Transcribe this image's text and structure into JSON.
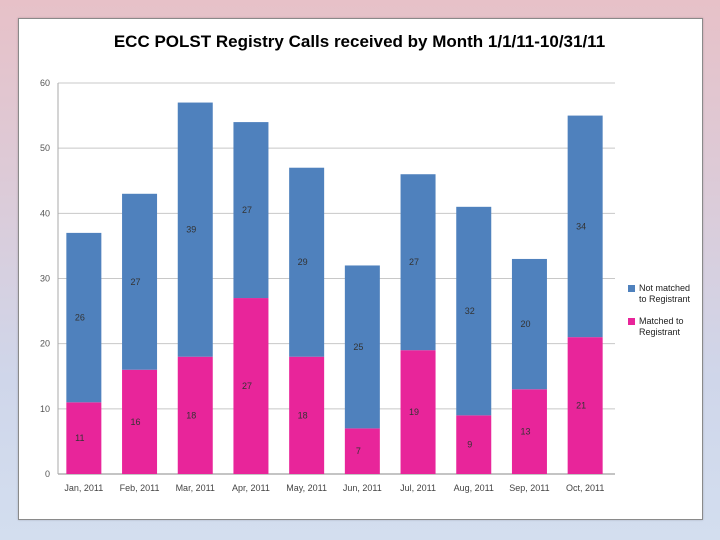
{
  "chart_data": {
    "type": "bar",
    "stacked": true,
    "title": "ECC POLST Registry Calls received by Month 1/1/11-10/31/11",
    "xlabel": "",
    "ylabel": "",
    "ylim": [
      0,
      60
    ],
    "yticks": [
      0,
      10,
      20,
      30,
      40,
      50,
      60
    ],
    "categories": [
      "Jan, 2011",
      "Feb, 2011",
      "Mar, 2011",
      "Apr, 2011",
      "May, 2011",
      "Jun, 2011",
      "Jul, 2011",
      "Aug, 2011",
      "Sep, 2011",
      "Oct, 2011"
    ],
    "series": [
      {
        "name": "Matched to Registrant",
        "color": "#e8259a",
        "values": [
          11,
          16,
          18,
          27,
          18,
          7,
          19,
          9,
          13,
          21
        ]
      },
      {
        "name": "Not matched to Registrant",
        "color": "#4f81bd",
        "values": [
          26,
          27,
          39,
          27,
          29,
          25,
          27,
          32,
          20,
          34
        ]
      }
    ],
    "legend": "right",
    "grid": true
  }
}
